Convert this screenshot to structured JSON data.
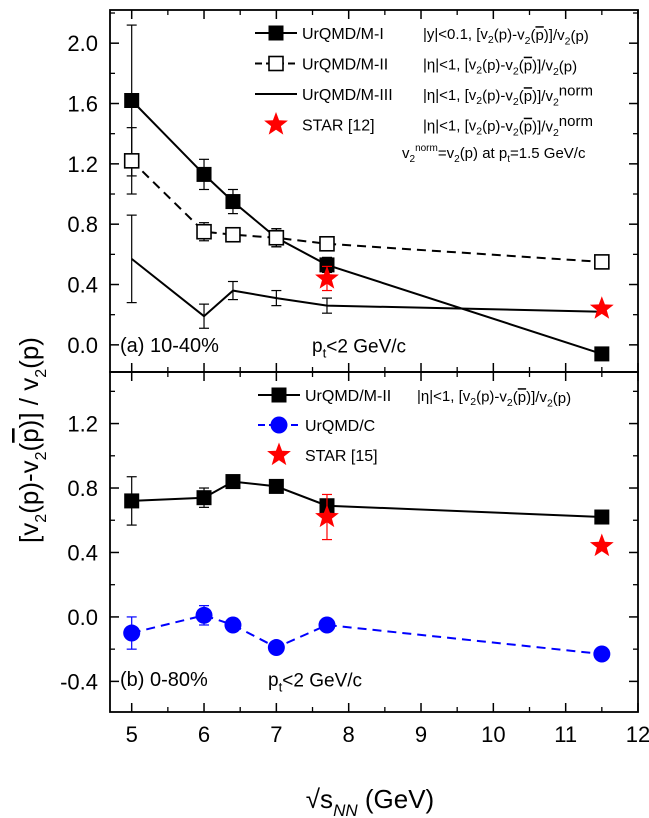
{
  "figure": {
    "ylabel": "[v2(p)-v2(p̄)] / v2(p)",
    "xlabel": "√sNN (GeV)"
  },
  "chart_data": [
    {
      "id": "a",
      "type": "line",
      "panel_label": "(a) 10-40%",
      "cut_label": "pt<2 GeV/c",
      "xlim": [
        4.7,
        12
      ],
      "ylim": [
        -0.18,
        2.22
      ],
      "x_ticks": [
        5,
        6,
        7,
        8,
        9,
        10,
        11,
        12
      ],
      "y_ticks": [
        0.0,
        0.4,
        0.8,
        1.2,
        1.6,
        2.0
      ],
      "y_tick_labels": [
        "0.0",
        "0.4",
        "0.8",
        "1.2",
        "1.6",
        "2.0"
      ],
      "norm_note": "v2norm=v2(p) at pt=1.5 GeV/c",
      "series": [
        {
          "name": "UrQMD/M-I",
          "condition": "|y|<0.1, [v2(p)-v2(p̄)]/v2(p)",
          "marker": "square-filled",
          "line": "solid",
          "color": "#000000",
          "x": [
            5.0,
            6.0,
            6.4,
            7.0,
            7.7,
            11.5
          ],
          "y": [
            1.62,
            1.13,
            0.95,
            0.71,
            0.53,
            -0.06
          ],
          "err": [
            0.5,
            0.1,
            0.08,
            0.06,
            0.05,
            0.03
          ]
        },
        {
          "name": "UrQMD/M-II",
          "condition": "|η|<1, [v2(p)-v2(p̄)]/v2(p)",
          "marker": "square-open",
          "line": "dashed",
          "color": "#000000",
          "x": [
            5.0,
            6.0,
            6.4,
            7.0,
            7.7,
            11.5
          ],
          "y": [
            1.22,
            0.75,
            0.73,
            0.71,
            0.67,
            0.55
          ],
          "err": [
            0.22,
            0.06,
            0.03,
            0.06,
            0.03,
            0.03
          ]
        },
        {
          "name": "UrQMD/M-III",
          "condition": "|η|<1, [v2(p)-v2(p̄)]/v2norm",
          "marker": "none",
          "line": "solid",
          "color": "#000000",
          "x": [
            5.0,
            6.0,
            6.4,
            7.0,
            7.7,
            11.5
          ],
          "y": [
            0.57,
            0.19,
            0.36,
            0.31,
            0.26,
            0.22
          ],
          "err": [
            0.29,
            0.08,
            0.06,
            0.05,
            0.05,
            0.0
          ]
        },
        {
          "name": "STAR [12]",
          "condition": "|η|<1, [v2(p)-v2(p̄)]/v2norm",
          "marker": "star",
          "line": "none",
          "color": "#ff0000",
          "x": [
            7.7,
            11.5
          ],
          "y": [
            0.44,
            0.24
          ],
          "err": [
            0.08,
            0.02
          ]
        }
      ]
    },
    {
      "id": "b",
      "type": "line",
      "panel_label": "(b) 0-80%",
      "cut_label": "pt<2 GeV/c",
      "xlim": [
        4.7,
        12
      ],
      "ylim": [
        -0.59,
        1.52
      ],
      "x_ticks": [
        5,
        6,
        7,
        8,
        9,
        10,
        11,
        12
      ],
      "x_tick_labels": [
        "5",
        "6",
        "7",
        "8",
        "9",
        "10",
        "11",
        "12"
      ],
      "y_ticks": [
        -0.4,
        0.0,
        0.4,
        0.8,
        1.2
      ],
      "y_tick_labels": [
        "-0.4",
        "0.0",
        "0.4",
        "0.8",
        "1.2"
      ],
      "series": [
        {
          "name": "UrQMD/M-II",
          "condition": "|η|<1, [v2(p)-v2(p̄)]/v2(p)",
          "marker": "square-filled",
          "line": "solid",
          "color": "#000000",
          "x": [
            5.0,
            6.0,
            6.4,
            7.0,
            7.7,
            11.5
          ],
          "y": [
            0.72,
            0.74,
            0.84,
            0.81,
            0.69,
            0.62
          ],
          "err": [
            0.15,
            0.06,
            0.03,
            0.02,
            0.03,
            0.02
          ]
        },
        {
          "name": "UrQMD/C",
          "condition": "",
          "marker": "circle-filled",
          "line": "dashed",
          "color": "#0000ff",
          "x": [
            5.0,
            6.0,
            6.4,
            7.0,
            7.7,
            11.5
          ],
          "y": [
            -0.1,
            0.01,
            -0.05,
            -0.19,
            -0.05,
            -0.23
          ],
          "err": [
            0.1,
            0.06,
            0.04,
            0.02,
            0.02,
            0.02
          ]
        },
        {
          "name": "STAR  [15]",
          "condition": "",
          "marker": "star",
          "line": "none",
          "color": "#ff0000",
          "x": [
            7.7,
            11.5
          ],
          "y": [
            0.62,
            0.44
          ],
          "err": [
            0.14,
            0.0
          ]
        }
      ]
    }
  ]
}
